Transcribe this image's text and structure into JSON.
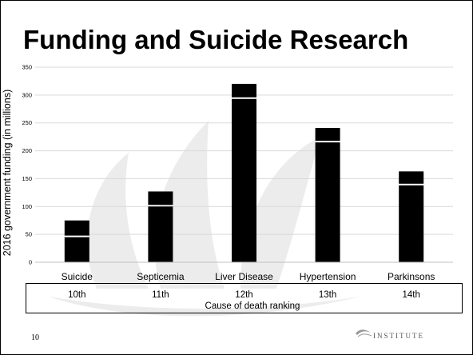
{
  "slide": {
    "title": "Funding and Suicide Research",
    "page_number": "10",
    "footer_logo_text": "INSTITUTE",
    "watermark_icon": "leaf-watermark-icon",
    "footer_icon": "footer-logo-icon"
  },
  "chart_data": {
    "type": "bar",
    "title": "Funding and Suicide Research",
    "ylabel": "2016 government funding (in millions)",
    "xlabel": "Cause of death ranking",
    "ylim": [
      0,
      350
    ],
    "yticks": [
      0,
      50,
      100,
      150,
      200,
      250,
      300,
      350
    ],
    "grid": true,
    "categories": [
      "Suicide",
      "Septicemia",
      "Liver Disease",
      "Hypertension",
      "Parkinsons"
    ],
    "rankings": [
      "10th",
      "11th",
      "12th",
      "13th",
      "14th"
    ],
    "series": [
      {
        "values": [
          45,
          100,
          293,
          215,
          138
        ]
      },
      {
        "values": [
          30,
          27,
          27,
          26,
          25
        ]
      }
    ],
    "colors": {
      "bar": "#000000",
      "grid": "#d9d9d9"
    }
  }
}
